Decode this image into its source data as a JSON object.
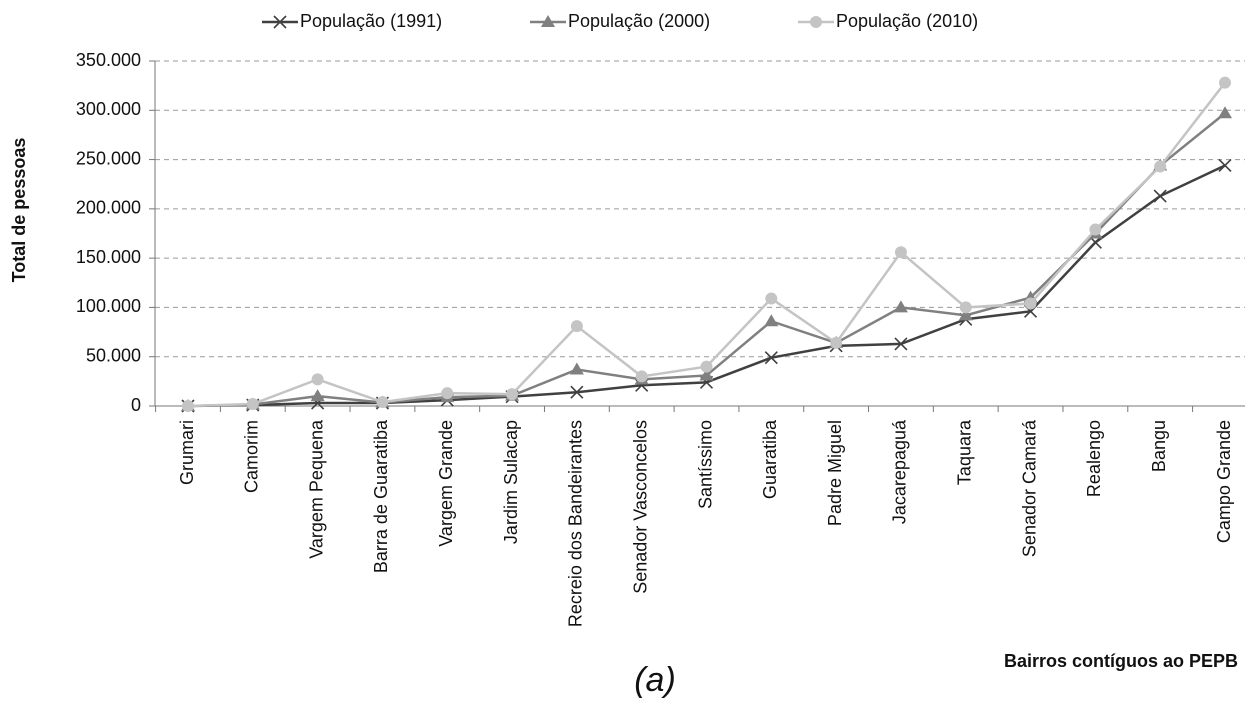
{
  "chart_data": {
    "type": "line",
    "y_label": "Total de pessoas",
    "x_label": "Bairros contíguos ao PEPB",
    "caption": "(a)",
    "categories": [
      "Grumari",
      "Camorim",
      "Vargem Pequena",
      "Barra de Guaratiba",
      "Vargem Grande",
      "Jardim Sulacap",
      "Recreio dos Bandeirantes",
      "Senador Vasconcelos",
      "Santíssimo",
      "Guaratiba",
      "Padre Miguel",
      "Jacarepaguá",
      "Taquara",
      "Senador Camará",
      "Realengo",
      "Bangu",
      "Campo Grande"
    ],
    "series": [
      {
        "name": "População (1991)",
        "color": "#404040",
        "marker": "x",
        "values": [
          0,
          1000,
          3000,
          3000,
          6000,
          9500,
          14000,
          21000,
          24000,
          49000,
          61000,
          63000,
          88000,
          96000,
          166000,
          213000,
          244000
        ]
      },
      {
        "name": "População (2000)",
        "color": "#808080",
        "marker": "triangle",
        "values": [
          0,
          1500,
          10000,
          3500,
          9000,
          10500,
          37000,
          27000,
          31000,
          86000,
          64000,
          100000,
          92000,
          110000,
          175000,
          244000,
          297000
        ]
      },
      {
        "name": "População (2010)",
        "color": "#c4c4c4",
        "marker": "circle",
        "values": [
          0,
          2000,
          27000,
          4000,
          13000,
          12000,
          81000,
          30000,
          40000,
          109000,
          64000,
          156000,
          100000,
          104000,
          179000,
          243000,
          328000
        ]
      }
    ],
    "ylim": [
      0,
      350000
    ],
    "yticks": [
      0,
      {
        "value": 50000,
        "label": "50.000"
      },
      {
        "value": 100000,
        "label": "100.000"
      },
      {
        "value": 150000,
        "label": "150.000"
      },
      {
        "value": 200000,
        "label": "200.000"
      },
      {
        "value": 250000,
        "label": "250.000"
      },
      {
        "value": 300000,
        "label": "300.000"
      },
      {
        "value": 350000,
        "label": "350.000"
      }
    ],
    "grid": true,
    "legend": "top"
  }
}
